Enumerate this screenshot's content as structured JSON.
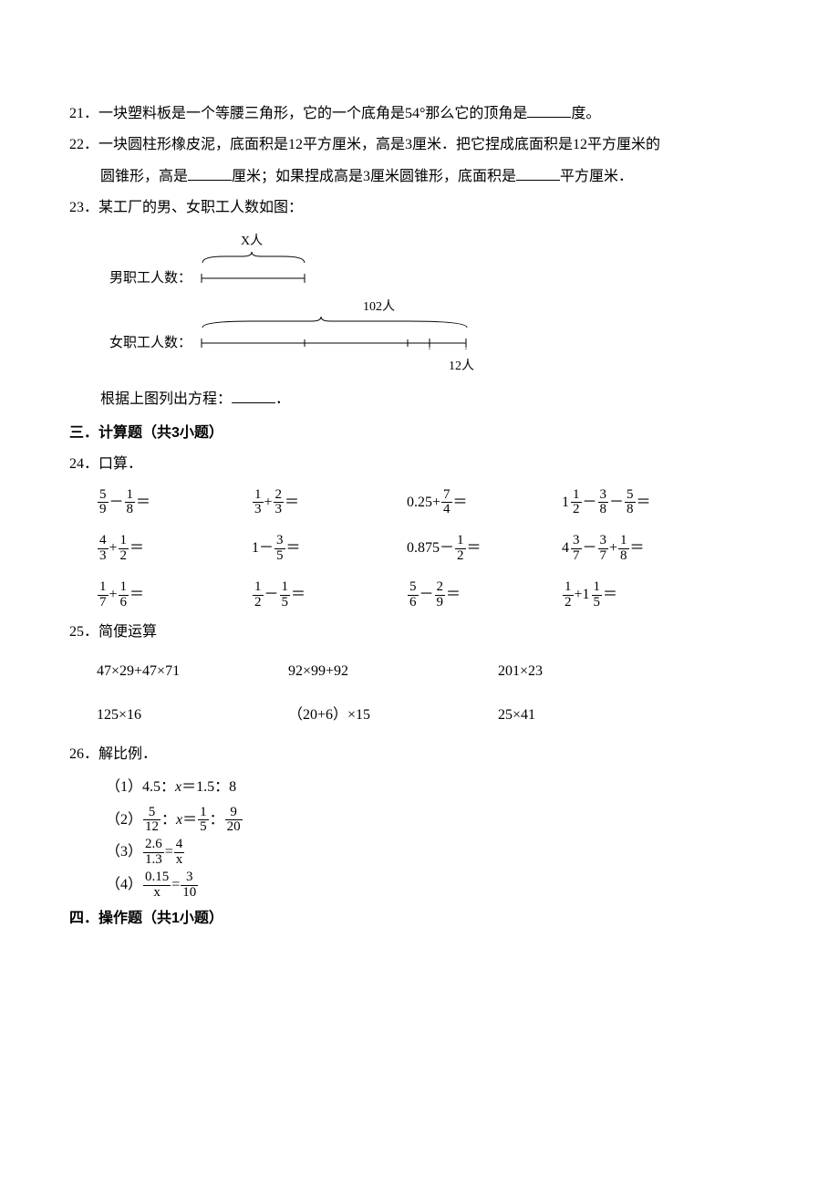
{
  "q21": {
    "num": "21．",
    "text_a": "一块塑料板是一个等腰三角形，它的一个底角是54°那么它的顶角是",
    "text_b": "度。"
  },
  "q22": {
    "num": "22．",
    "text_a": "一块圆柱形橡皮泥，底面积是12平方厘米，高是3厘米．把它捏成底面积是12平方厘米的",
    "text_b": "圆锥形，高是",
    "text_c": "厘米；如果捏成高是3厘米圆锥形，底面积是",
    "text_d": "平方厘米．"
  },
  "q23": {
    "num": "23．",
    "text_a": "某工厂的男、女职工人数如图：",
    "male_label": "男职工人数：",
    "female_label": "女职工人数：",
    "x_label": "X人",
    "total_label": "102人",
    "extra_label": "12人",
    "text_b": "根据上图列出方程：",
    "text_c": "．"
  },
  "sec3": {
    "title": "三．计算题（共3小题）"
  },
  "q24": {
    "num": "24．",
    "title": "口算．",
    "items": [
      [
        {
          "n": "5",
          "d": "9"
        },
        "－",
        {
          "n": "1",
          "d": "8"
        },
        "＝"
      ],
      [
        {
          "n": "1",
          "d": "3"
        },
        "+",
        {
          "n": "2",
          "d": "3"
        },
        "＝"
      ],
      [
        "0.25+",
        {
          "n": "7",
          "d": "4"
        },
        "＝"
      ],
      [
        {
          "w": "1",
          "n": "1",
          "d": "2"
        },
        "－",
        {
          "n": "3",
          "d": "8"
        },
        "－",
        {
          "n": "5",
          "d": "8"
        },
        "＝"
      ],
      [
        {
          "n": "4",
          "d": "3"
        },
        "+",
        {
          "n": "1",
          "d": "2"
        },
        "＝"
      ],
      [
        "1－",
        {
          "n": "3",
          "d": "5"
        },
        "＝"
      ],
      [
        "0.875－",
        {
          "n": "1",
          "d": "2"
        },
        "＝"
      ],
      [
        {
          "w": "4",
          "n": "3",
          "d": "7"
        },
        "－",
        {
          "n": "3",
          "d": "7"
        },
        "+",
        {
          "n": "1",
          "d": "8"
        },
        "＝"
      ],
      [
        {
          "n": "1",
          "d": "7"
        },
        "+",
        {
          "n": "1",
          "d": "6"
        },
        "＝"
      ],
      [
        {
          "n": "1",
          "d": "2"
        },
        "－",
        {
          "n": "1",
          "d": "5"
        },
        "＝"
      ],
      [
        {
          "n": "5",
          "d": "6"
        },
        "－",
        {
          "n": "2",
          "d": "9"
        },
        "＝"
      ],
      [
        {
          "n": "1",
          "d": "2"
        },
        "+",
        {
          "w": "1",
          "n": "1",
          "d": "5"
        },
        "＝"
      ]
    ]
  },
  "q25": {
    "num": "25．",
    "title": "简便运算",
    "items": [
      "47×29+47×71",
      "92×99+92",
      "201×23",
      "125×16",
      "（20+6）×15",
      "25×41"
    ]
  },
  "q26": {
    "num": "26．",
    "title": "解比例．",
    "s1_a": "（1）4.5：",
    "s1_b": "＝1.5：8",
    "s2_a": "（2）",
    "s2_b": "：",
    "s2_c": "＝",
    "s2_d": "：",
    "f_5_12": {
      "n": "5",
      "d": "12"
    },
    "f_1_5": {
      "n": "1",
      "d": "5"
    },
    "f_9_20": {
      "n": "9",
      "d": "20"
    },
    "s3_a": "（3）",
    "f_26_13": {
      "n": "2.6",
      "d": "1.3"
    },
    "s3_b": "=",
    "f_4_x": {
      "n": "4",
      "d": "x"
    },
    "s4_a": "（4）",
    "f_015_x": {
      "n": "0.15",
      "d": "x"
    },
    "s4_b": "=",
    "f_3_10": {
      "n": "3",
      "d": "10"
    }
  },
  "sec4": {
    "title": "四．操作题（共1小题）"
  },
  "x_var": "x"
}
